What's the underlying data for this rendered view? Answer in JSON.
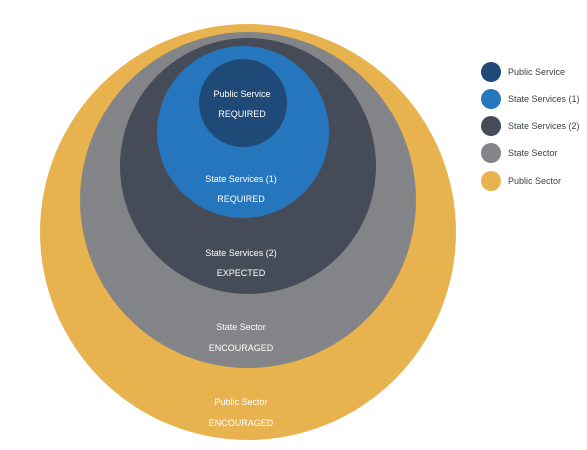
{
  "rings": [
    {
      "key": "public-sector",
      "title": "Public Sector",
      "subtitle": "ENCOURAGED",
      "color": "#E8B24E"
    },
    {
      "key": "state-sector",
      "title": "State Sector",
      "subtitle": "ENCOURAGED",
      "color": "#838487"
    },
    {
      "key": "state-services-2",
      "title": "State Services (2)",
      "subtitle": "EXPECTED",
      "color": "#464C57"
    },
    {
      "key": "state-services-1",
      "title": "State Services (1)",
      "subtitle": "REQUIRED",
      "color": "#2676BE"
    },
    {
      "key": "public-service",
      "title": "Public Service",
      "subtitle": "REQUIRED",
      "color": "#1F4A78"
    }
  ],
  "legend": [
    {
      "label": "Public Service",
      "color": "#1F4A78"
    },
    {
      "label": "State Services (1)",
      "color": "#2676BE"
    },
    {
      "label": "State Services (2)",
      "color": "#464C57"
    },
    {
      "label": "State Sector",
      "color": "#838487"
    },
    {
      "label": "Public Sector",
      "color": "#E8B24E"
    }
  ]
}
